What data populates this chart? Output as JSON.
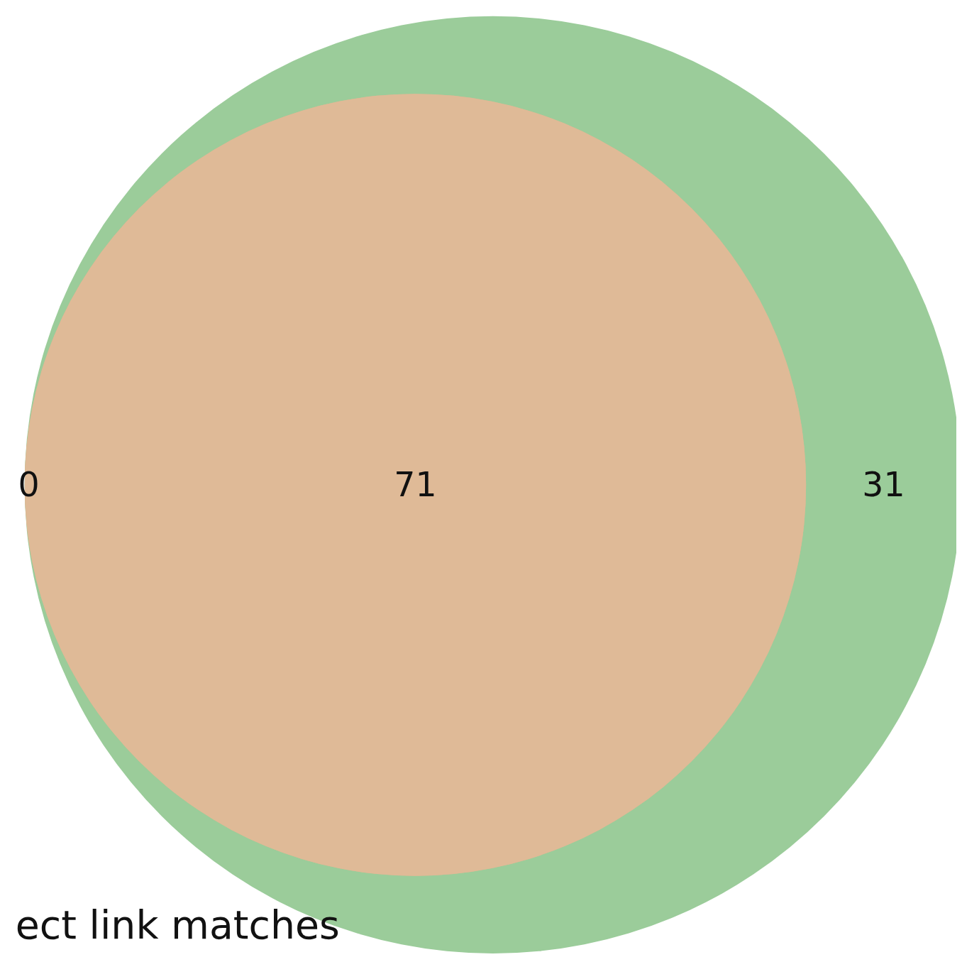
{
  "chart_data": {
    "type": "other",
    "values": [
      0,
      71,
      31
    ],
    "colors": [
      "#d9b88f",
      "#dfba97",
      "#9bcc9a"
    ],
    "data_labels": true,
    "annotations": [
      "ect link matches"
    ]
  }
}
